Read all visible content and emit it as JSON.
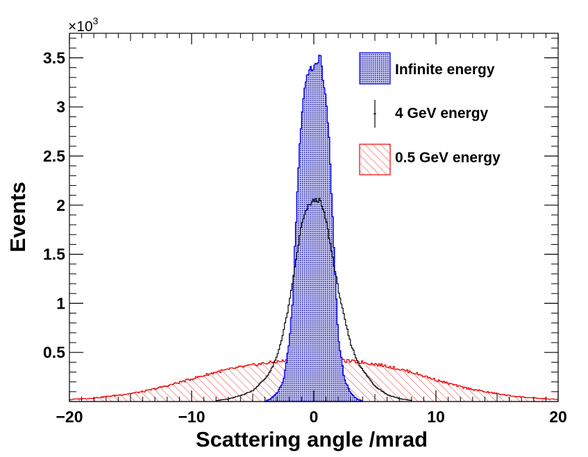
{
  "chart_data": {
    "type": "histogram",
    "xlabel": "Scattering angle /mrad",
    "ylabel": "Events",
    "xlim": [
      -20,
      20
    ],
    "ylim": [
      0,
      3750
    ],
    "y_multiplier_label": {
      "prefix": "×10",
      "exponent": "3"
    },
    "x_ticks": [
      {
        "value": -20,
        "label": "−20"
      },
      {
        "value": -10,
        "label": "−10"
      },
      {
        "value": 0,
        "label": "0"
      },
      {
        "value": 10,
        "label": "10"
      },
      {
        "value": 20,
        "label": "20"
      }
    ],
    "y_ticks": [
      {
        "value": 500,
        "label": "0.5"
      },
      {
        "value": 1000,
        "label": "1"
      },
      {
        "value": 1500,
        "label": "1.5"
      },
      {
        "value": 2000,
        "label": "2"
      },
      {
        "value": 2500,
        "label": "2.5"
      },
      {
        "value": 3000,
        "label": "3"
      },
      {
        "value": 3500,
        "label": "3.5"
      }
    ],
    "series": [
      {
        "name": "Infinite energy",
        "style": "dotted-fill",
        "color": "#0000ee",
        "fill": "#1c1c9c",
        "x": [
          -4,
          -3.5,
          -3,
          -2.5,
          -2,
          -1.75,
          -1.5,
          -1.25,
          -1,
          -0.75,
          -0.5,
          -0.25,
          0,
          0.25,
          0.5,
          0.75,
          1,
          1.25,
          1.5,
          1.75,
          2,
          2.5,
          3,
          3.5,
          4
        ],
        "y": [
          0,
          30,
          90,
          200,
          600,
          1000,
          1700,
          2400,
          2900,
          3200,
          3350,
          3380,
          3400,
          3430,
          3550,
          3300,
          3050,
          2700,
          2000,
          1300,
          650,
          230,
          90,
          30,
          0
        ]
      },
      {
        "name": "4 GeV energy",
        "style": "line-errorbar",
        "color": "#000000",
        "x": [
          -8,
          -7,
          -6,
          -5,
          -4,
          -3.5,
          -3,
          -2.5,
          -2,
          -1.5,
          -1,
          -0.5,
          0,
          0.5,
          1,
          1.5,
          2,
          2.5,
          3,
          3.5,
          4,
          5,
          6,
          7,
          8
        ],
        "y": [
          10,
          25,
          60,
          110,
          230,
          320,
          460,
          700,
          1000,
          1400,
          1800,
          1980,
          2050,
          2050,
          1850,
          1500,
          1150,
          850,
          600,
          430,
          320,
          160,
          70,
          30,
          10
        ]
      },
      {
        "name": "0.5 GeV energy",
        "style": "hatch-fill",
        "color": "#ee0000",
        "x": [
          -20,
          -18,
          -16,
          -14,
          -12,
          -10,
          -8,
          -6,
          -4,
          -2,
          0,
          2,
          4,
          6,
          8,
          10,
          12,
          14,
          16,
          18,
          20
        ],
        "y": [
          20,
          35,
          65,
          100,
          160,
          230,
          300,
          350,
          390,
          420,
          430,
          420,
          400,
          360,
          300,
          220,
          150,
          100,
          60,
          35,
          20
        ]
      }
    ],
    "legend": {
      "placement": "top-right",
      "entries": [
        "Infinite energy",
        "4 GeV energy",
        "0.5 GeV energy"
      ]
    }
  }
}
